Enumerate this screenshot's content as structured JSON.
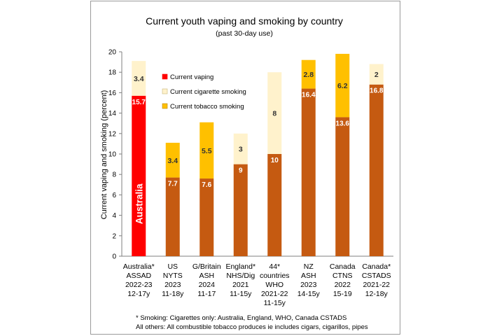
{
  "chart_data": {
    "type": "bar",
    "stacked": true,
    "title": "Current youth vaping and smoking by country",
    "subtitle": "(past 30-day use)",
    "ylabel": "Current vaping and smoking (percent)",
    "xlabel": "",
    "ylim": [
      0,
      20
    ],
    "yticks": [
      0,
      2,
      4,
      6,
      8,
      10,
      12,
      14,
      16,
      18,
      20
    ],
    "grid": false,
    "legend_position": "top-left inside",
    "categories": [
      [
        "Australia*",
        "ASSAD",
        "2022-23",
        "12-17y"
      ],
      [
        "US",
        "NYTS",
        "2023",
        "11-18y"
      ],
      [
        "G/Britain",
        "ASH",
        "2024",
        "11-17"
      ],
      [
        "England*",
        "NHS/Dig",
        "2021",
        "11-15y"
      ],
      [
        "44*",
        "countries",
        "WHO",
        "2021-22",
        "11-15y"
      ],
      [
        "NZ",
        "ASH",
        "2023",
        "14-15y"
      ],
      [
        "Canada",
        "CTNS",
        "2022",
        "15-19"
      ],
      [
        "Canada*",
        "CSTADS",
        "2021-22",
        "12-18y"
      ]
    ],
    "vaping": [
      15.7,
      7.7,
      7.6,
      9,
      10,
      16.4,
      13.6,
      16.8
    ],
    "smoking_values": [
      3.4,
      3.4,
      5.5,
      3,
      8,
      2.8,
      6.2,
      2
    ],
    "smoking_type": [
      "cigarette",
      "tobacco",
      "tobacco",
      "cigarette",
      "cigarette",
      "tobacco",
      "tobacco",
      "cigarette"
    ],
    "vaping_labels": [
      "15.7",
      "7.7",
      "7.6",
      "9",
      "10",
      "16.4",
      "13.6",
      "16.8"
    ],
    "smoking_labels": [
      "3.4",
      "3.4",
      "5.5",
      "3",
      "8",
      "2.8",
      "6.2",
      "2"
    ],
    "highlight_bar_label": "Australia",
    "legend": [
      {
        "key": "vaping",
        "label": "Current vaping"
      },
      {
        "key": "cigarette",
        "label": "Current cigarette smoking"
      },
      {
        "key": "tobacco",
        "label": "Current tobacco smoking"
      }
    ],
    "footnotes": [
      "* Smoking:  Cigarettes only: Australia, England, WHO, Canada CSTADS",
      "All others: All combustible tobacco produces ie includes cigars, cigarillos, pipes"
    ],
    "colors": {
      "vaping": "#c55a11",
      "vaping_highlight": "#ff0000",
      "cigarette": "#fff2cc",
      "tobacco": "#ffc000",
      "axis": "#7f7f7f",
      "text": "#000000",
      "white_label": "#ffffff"
    }
  }
}
